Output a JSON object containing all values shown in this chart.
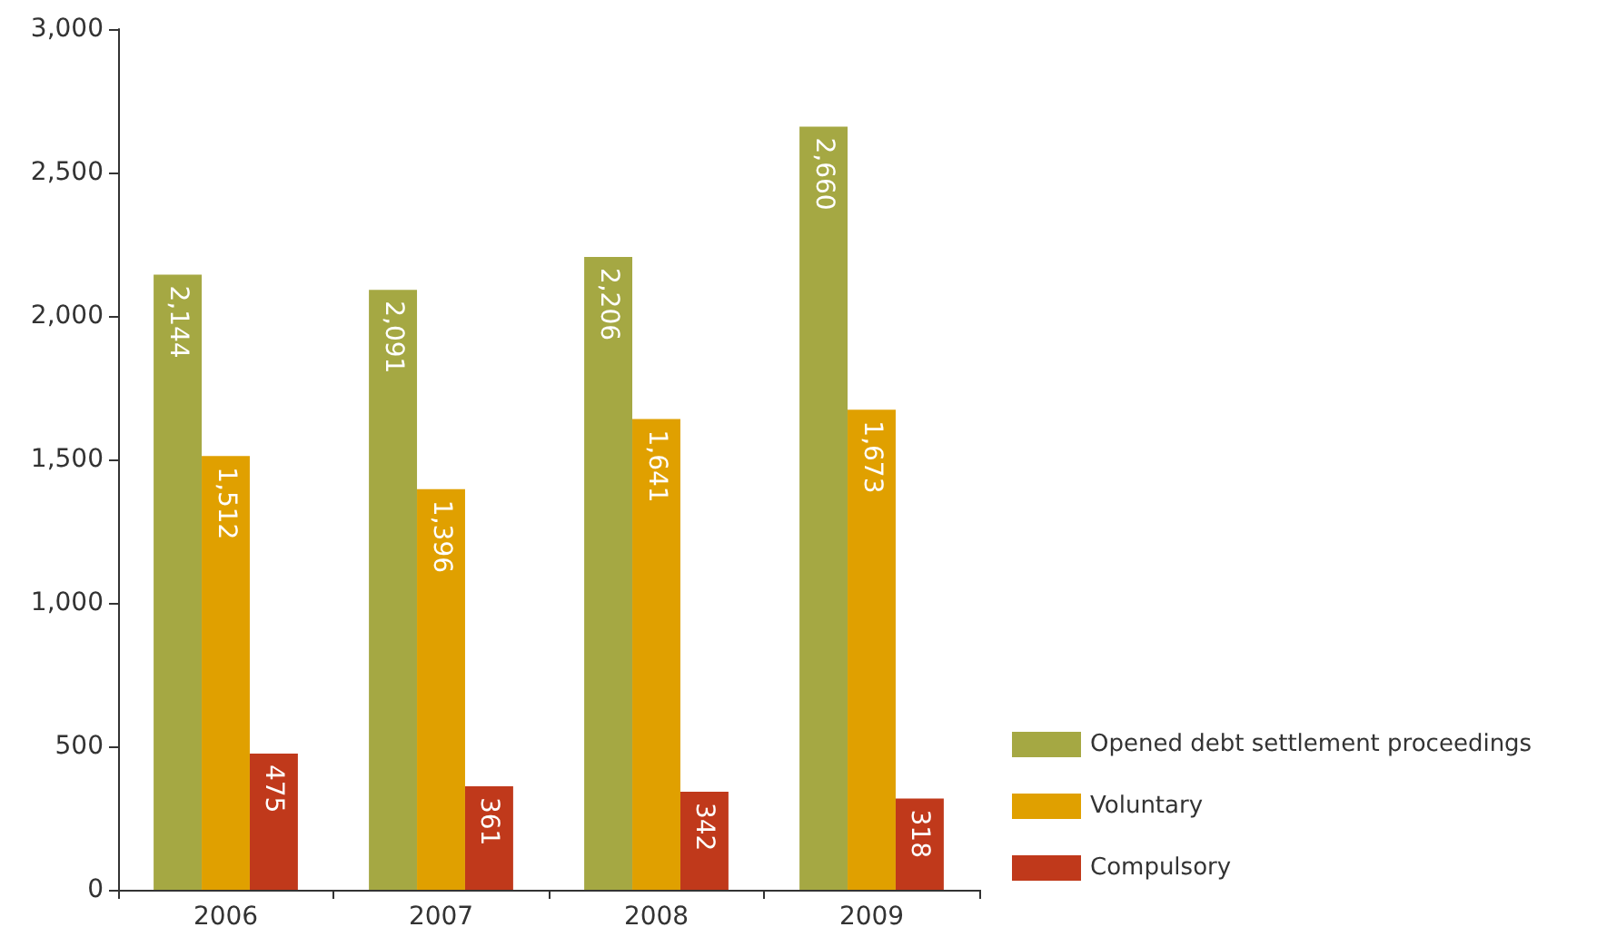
{
  "chart_data": {
    "type": "bar",
    "categories": [
      "2006",
      "2007",
      "2008",
      "2009"
    ],
    "series": [
      {
        "name": "Opened debt settlement proceedings",
        "color": "#a5a843",
        "values": [
          2144,
          2091,
          2206,
          2660
        ],
        "value_labels": [
          "2,144",
          "2,091",
          "2,206",
          "2,660"
        ]
      },
      {
        "name": "Voluntary",
        "color": "#e0a000",
        "values": [
          1512,
          1396,
          1641,
          1673
        ],
        "value_labels": [
          "1,512",
          "1,396",
          "1,641",
          "1,673"
        ]
      },
      {
        "name": "Compulsory",
        "color": "#c0391b",
        "values": [
          475,
          361,
          342,
          318
        ],
        "value_labels": [
          "475",
          "361",
          "342",
          "318"
        ]
      }
    ],
    "ylim": [
      0,
      3000
    ],
    "yticks": [
      0,
      500,
      {
        "value": 1000,
        "label": "1,000"
      },
      {
        "value": 1500,
        "label": "1,500"
      },
      {
        "value": 2000,
        "label": "2,000"
      },
      {
        "value": 2500,
        "label": "2,500"
      },
      {
        "value": 3000,
        "label": "3,000"
      }
    ],
    "grid": false,
    "legend": "bottom right"
  }
}
